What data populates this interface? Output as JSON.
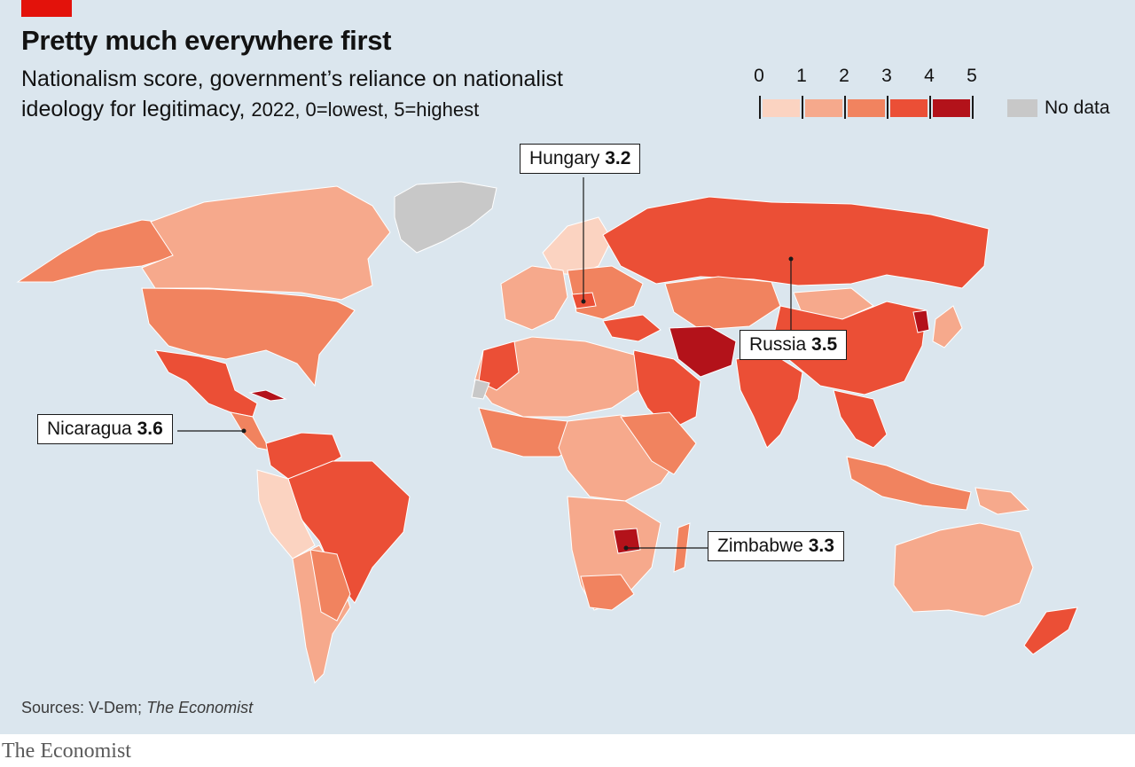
{
  "header": {
    "title": "Pretty much everywhere first",
    "subtitle_main": "Nationalism score, government’s reliance on nationalist ideology for legitimacy,",
    "subtitle_light": "2022, 0=lowest, 5=highest"
  },
  "legend": {
    "ticks": [
      "0",
      "1",
      "2",
      "3",
      "4",
      "5"
    ],
    "bins": [
      {
        "range": "0-1",
        "color": "#fbd3c1"
      },
      {
        "range": "1-2",
        "color": "#f6a98c"
      },
      {
        "range": "2-3",
        "color": "#f1835f"
      },
      {
        "range": "3-4",
        "color": "#eb4f36"
      },
      {
        "range": "4-5",
        "color": "#b3121a"
      }
    ],
    "no_data_label": "No data",
    "no_data_color": "#c8c8c8"
  },
  "callouts": [
    {
      "name": "Hungary",
      "value": "3.2"
    },
    {
      "name": "Russia",
      "value": "3.5"
    },
    {
      "name": "Nicaragua",
      "value": "3.6"
    },
    {
      "name": "Zimbabwe",
      "value": "3.3"
    }
  ],
  "footer": {
    "source_prefix": "Sources: V-Dem;",
    "source_italic": "The Economist",
    "brand": "The Economist"
  }
}
